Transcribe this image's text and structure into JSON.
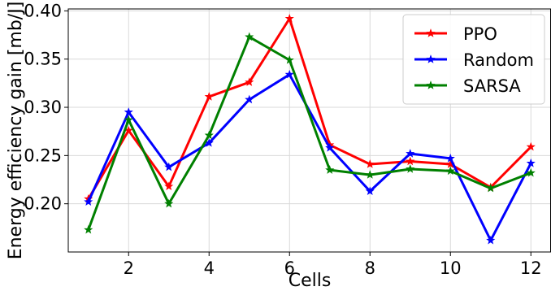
{
  "chart_data": {
    "type": "line",
    "title": "",
    "xlabel": "Cells",
    "ylabel": "Energy efficiency gain [mb/J]",
    "xlim": [
      0.5,
      12.5
    ],
    "ylim": [
      0.15,
      0.402
    ],
    "x": [
      1,
      2,
      3,
      4,
      5,
      6,
      7,
      8,
      9,
      10,
      11,
      12
    ],
    "xticks": [
      2,
      4,
      6,
      8,
      10,
      12
    ],
    "yticks": [
      0.2,
      0.25,
      0.3,
      0.35,
      0.4
    ],
    "xtick_labels": [
      "2",
      "4",
      "6",
      "8",
      "10",
      "12"
    ],
    "ytick_labels": [
      "0.20",
      "0.25",
      "0.30",
      "0.35",
      "0.40"
    ],
    "grid": true,
    "legend_position": "top-right",
    "marker": "star",
    "series": [
      {
        "name": "PPO",
        "color": "#ff0000",
        "values": [
          0.205,
          0.276,
          0.218,
          0.311,
          0.326,
          0.392,
          0.261,
          0.241,
          0.244,
          0.241,
          0.217,
          0.259
        ]
      },
      {
        "name": "Random",
        "color": "#0000ff",
        "values": [
          0.202,
          0.295,
          0.238,
          0.263,
          0.308,
          0.334,
          0.258,
          0.213,
          0.252,
          0.247,
          0.162,
          0.242
        ]
      },
      {
        "name": "SARSA",
        "color": "#008000",
        "values": [
          0.173,
          0.287,
          0.2,
          0.271,
          0.373,
          0.349,
          0.235,
          0.23,
          0.236,
          0.234,
          0.216,
          0.232
        ]
      }
    ]
  }
}
